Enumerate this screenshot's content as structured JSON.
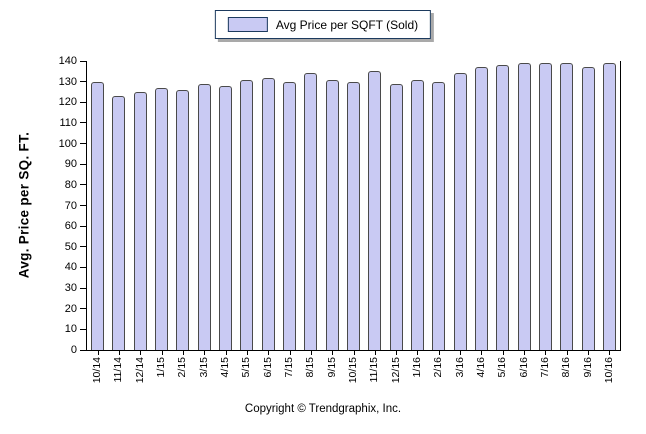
{
  "legend": {
    "label": "Avg Price per SQFT (Sold)"
  },
  "footer": {
    "copyright": "Copyright © Trendgraphix, Inc."
  },
  "chart_data": {
    "type": "bar",
    "title": "",
    "categories": [
      "10/14",
      "11/14",
      "12/14",
      "1/15",
      "2/15",
      "3/15",
      "4/15",
      "5/15",
      "6/15",
      "7/15",
      "8/15",
      "9/15",
      "10/15",
      "11/15",
      "12/15",
      "1/16",
      "2/16",
      "3/16",
      "4/16",
      "5/16",
      "6/16",
      "7/16",
      "8/16",
      "9/16",
      "10/16"
    ],
    "values": [
      130,
      123,
      125,
      127,
      126,
      129,
      128,
      131,
      132,
      130,
      134,
      131,
      130,
      135,
      129,
      131,
      130,
      134,
      137,
      138,
      139,
      139,
      139,
      137,
      139
    ],
    "series_name": "Avg Price per SQFT (Sold)",
    "xlabel": "",
    "ylabel": "Avg. Price per SQ. FT.",
    "ylim": [
      0,
      140
    ],
    "ytick_step": 10,
    "grid": false,
    "legend_position": "top-center",
    "colors": {
      "bar_fill": "#c9caf3",
      "bar_border": "#4a4a4a",
      "legend_border": "#1c3a5e",
      "axis": "#000000",
      "text": "#000000",
      "background": "#ffffff",
      "shadow": "#a9a9a9"
    }
  }
}
